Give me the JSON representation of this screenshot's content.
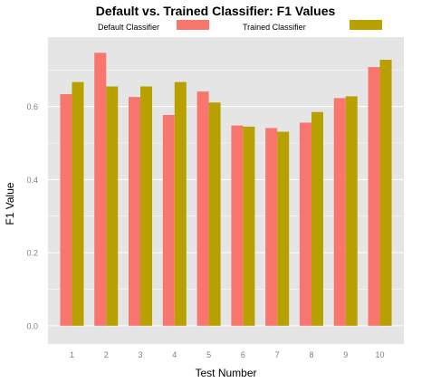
{
  "chart_data": {
    "type": "bar",
    "title": "Default vs. Trained Classifier: F1 Values",
    "xlabel": "Test Number",
    "ylabel": "F1 Value",
    "categories": [
      "1",
      "2",
      "3",
      "4",
      "5",
      "6",
      "7",
      "8",
      "9",
      "10"
    ],
    "series": [
      {
        "name": "Default Classifier",
        "color": "#f8766d",
        "values": [
          0.634,
          0.747,
          0.626,
          0.577,
          0.641,
          0.548,
          0.541,
          0.556,
          0.623,
          0.708
        ]
      },
      {
        "name": "Trained Classifier",
        "color": "#b8a000",
        "values": [
          0.667,
          0.655,
          0.655,
          0.667,
          0.611,
          0.545,
          0.531,
          0.585,
          0.628,
          0.728
        ]
      }
    ],
    "ylim": [
      -0.05,
      0.79
    ],
    "yticks": [
      0.0,
      0.2,
      0.4,
      0.6
    ],
    "ytick_labels": [
      "0.0",
      "0.2",
      "0.4",
      "0.6"
    ],
    "grid": true,
    "legend_position": "top"
  },
  "style": {
    "panel_background": "#e5e5e5",
    "grid_color": "#ffffff",
    "axis_text_color": "#7f7f7f",
    "title_color": "#000000"
  }
}
